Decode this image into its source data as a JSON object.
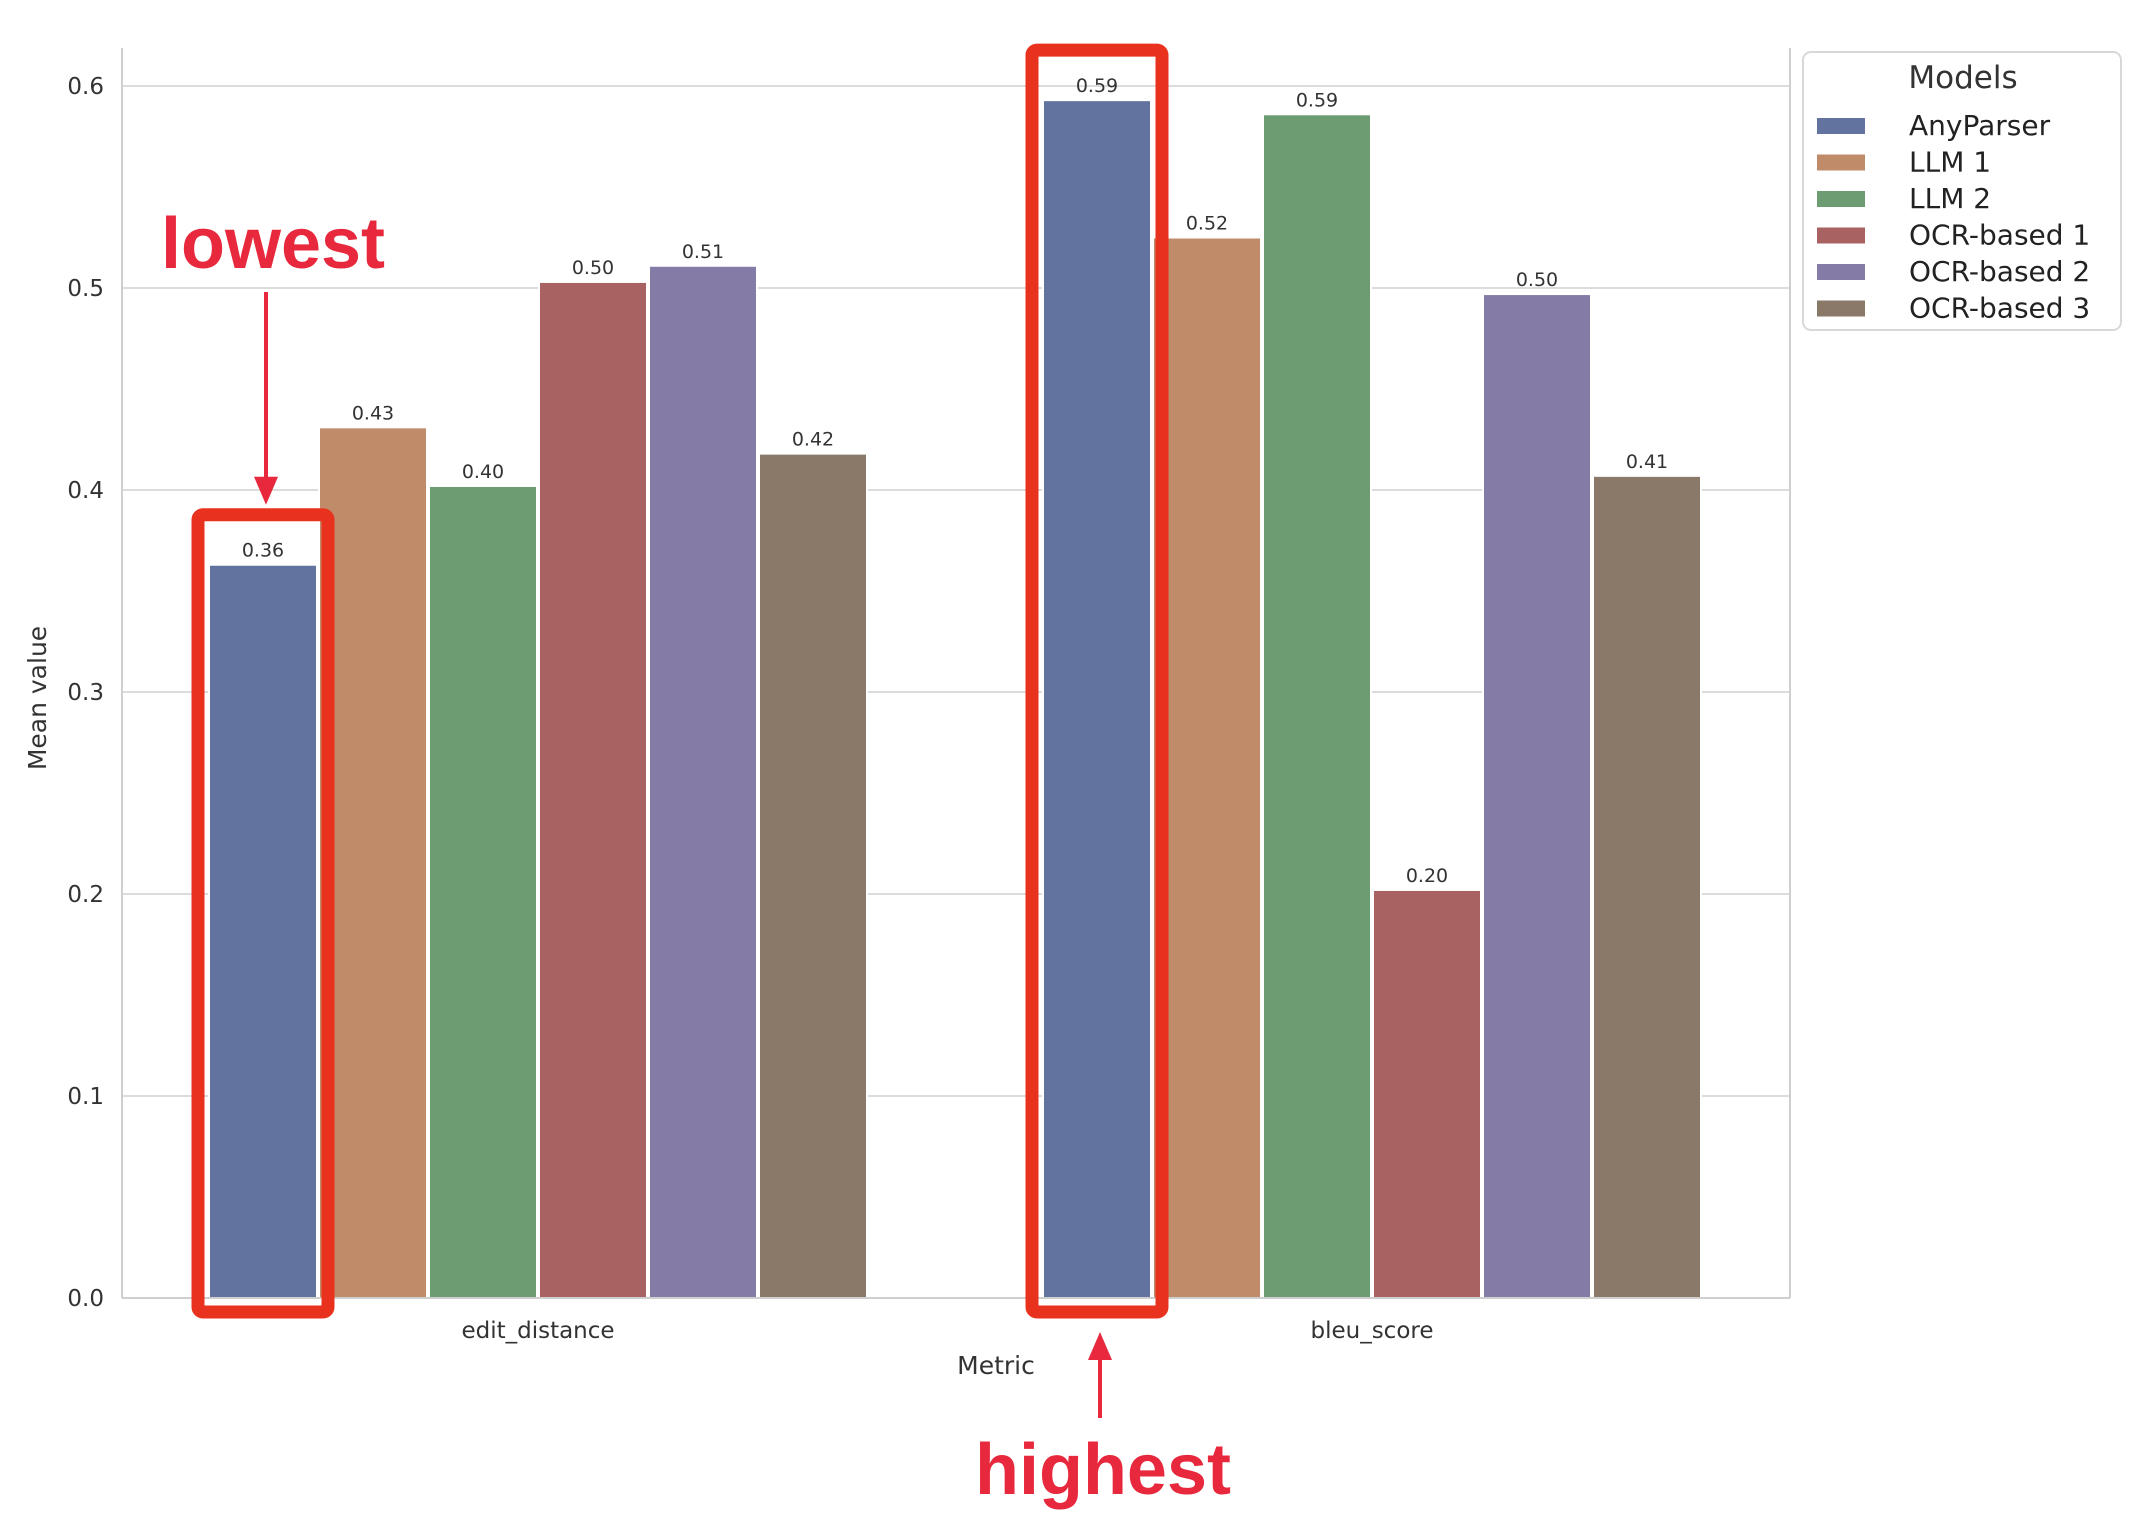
{
  "chart_data": {
    "type": "bar",
    "categories": [
      "edit_distance",
      "bleu_score"
    ],
    "series": [
      {
        "name": "AnyParser",
        "color": "#6273a0",
        "values": [
          0.363,
          0.593
        ],
        "labels": [
          "0.36",
          "0.59"
        ]
      },
      {
        "name": "LLM 1",
        "color": "#c08b68",
        "values": [
          0.431,
          0.525
        ],
        "labels": [
          "0.43",
          "0.52"
        ]
      },
      {
        "name": "LLM 2",
        "color": "#6d9c72",
        "values": [
          0.402,
          0.586
        ],
        "labels": [
          "0.40",
          "0.59"
        ]
      },
      {
        "name": "OCR-based 1",
        "color": "#a86262",
        "values": [
          0.503,
          0.202
        ],
        "labels": [
          "0.50",
          "0.20"
        ]
      },
      {
        "name": "OCR-based 2",
        "color": "#857ba7",
        "values": [
          0.511,
          0.497
        ],
        "labels": [
          "0.51",
          "0.50"
        ]
      },
      {
        "name": "OCR-based 3",
        "color": "#8a7968",
        "values": [
          0.418,
          0.407
        ],
        "labels": [
          "0.42",
          "0.41"
        ]
      }
    ],
    "xlabel": "Metric",
    "ylabel": "Mean value",
    "ylim": [
      0,
      0.62
    ],
    "yticks": [
      0.0,
      0.1,
      0.2,
      0.3,
      0.4,
      0.5,
      0.6
    ],
    "ytick_labels": [
      "0.0",
      "0.1",
      "0.2",
      "0.3",
      "0.4",
      "0.5",
      "0.6"
    ],
    "grid": "horizontal",
    "legend": {
      "title": "Models",
      "placement": "upper-right-outside"
    },
    "annotations": [
      {
        "text": "lowest",
        "color": "#e8283c",
        "target": {
          "category": "edit_distance",
          "series": "AnyParser"
        }
      },
      {
        "text": "highest",
        "color": "#e8283c",
        "target": {
          "category": "bleu_score",
          "series": "AnyParser"
        }
      }
    ],
    "highlight_color": "#e8321e"
  }
}
